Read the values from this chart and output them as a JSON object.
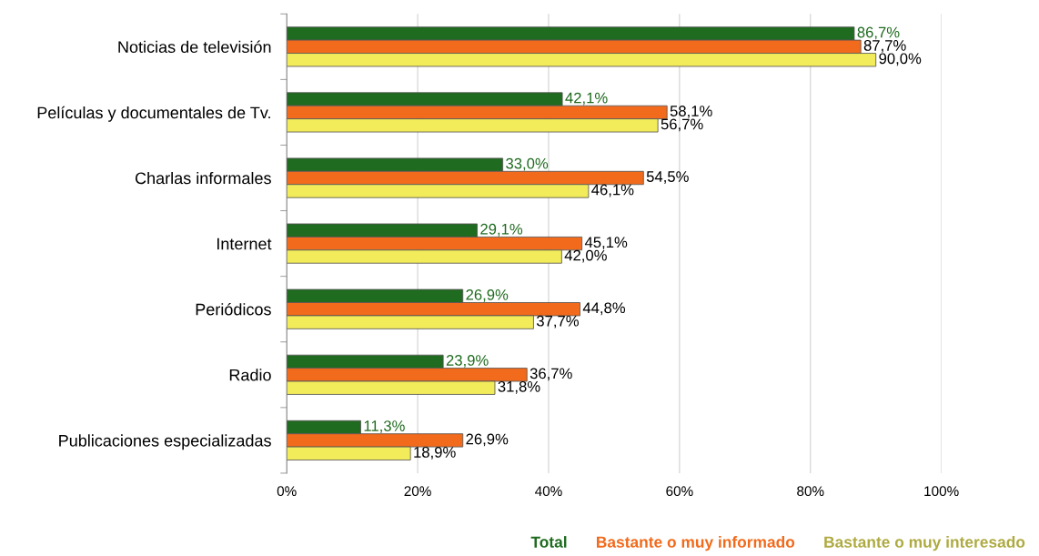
{
  "chart_data": {
    "type": "bar",
    "orientation": "horizontal",
    "categories": [
      "Noticias de televisión",
      "Películas y documentales de Tv.",
      "Charlas informales",
      "Internet",
      "Periódicos",
      "Radio",
      "Publicaciones especializadas"
    ],
    "series": [
      {
        "name": "Total",
        "color": "#1f6b1f",
        "values": [
          86.7,
          42.1,
          33.0,
          29.1,
          26.9,
          23.9,
          11.3
        ],
        "value_labels": [
          "86,7%",
          "42,1%",
          "33,0%",
          "29,1%",
          "26,9%",
          "23,9%",
          "11,3%"
        ]
      },
      {
        "name": "Bastante o muy informado",
        "color": "#f26a1b",
        "values": [
          87.7,
          58.1,
          54.5,
          45.1,
          44.8,
          36.7,
          26.9
        ],
        "value_labels": [
          "87,7%",
          "58,1%",
          "54,5%",
          "45,1%",
          "44,8%",
          "36,7%",
          "26,9%"
        ]
      },
      {
        "name": "Bastante o muy interesado",
        "color": "#f2ec5a",
        "values": [
          90.0,
          56.7,
          46.1,
          42.0,
          37.7,
          31.8,
          18.9
        ],
        "value_labels": [
          "90,0%",
          "56,7%",
          "46,1%",
          "42,0%",
          "37,7%",
          "31,8%",
          "18,9%"
        ]
      }
    ],
    "xlim": [
      0,
      100
    ],
    "xticks": [
      {
        "value": 0,
        "label": "0%"
      },
      {
        "value": 20,
        "label": "20%"
      },
      {
        "value": 40,
        "label": "40%"
      },
      {
        "value": 60,
        "label": "60%"
      },
      {
        "value": 80,
        "label": "80%"
      },
      {
        "value": 100,
        "label": "100%"
      }
    ],
    "grid": "x",
    "legend": "bottom"
  }
}
